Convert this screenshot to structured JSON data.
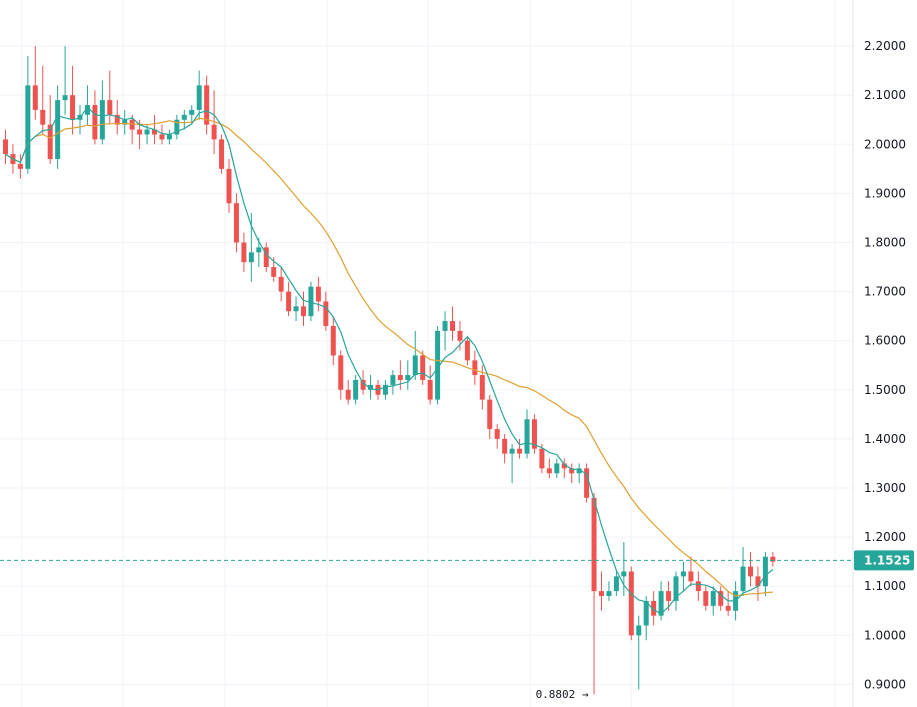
{
  "chart_data": {
    "type": "candlestick",
    "ylim": [
      0.88,
      2.3
    ],
    "y_ticks": [
      "2.2000",
      "2.1000",
      "2.0000",
      "1.9000",
      "1.8000",
      "1.7000",
      "1.6000",
      "1.5000",
      "1.4000",
      "1.3000",
      "1.2000",
      "1.1000",
      "1.0000",
      "0.9000"
    ],
    "grid": true,
    "current_price": "1.1525",
    "low_label": "0.8802",
    "colors": {
      "up": "#26a69a",
      "down": "#ef5350",
      "ma_fast": "#26a69a",
      "ma_slow": "#e0a030",
      "grid": "#f0f3fa",
      "price_line": "#26a69a"
    },
    "candles": [
      [
        2.01,
        2.03,
        1.96,
        1.98
      ],
      [
        1.98,
        2.0,
        1.94,
        1.96
      ],
      [
        1.96,
        1.98,
        1.93,
        1.95
      ],
      [
        1.95,
        2.18,
        1.94,
        2.12
      ],
      [
        2.12,
        2.2,
        2.05,
        2.07
      ],
      [
        2.07,
        2.16,
        2.02,
        2.04
      ],
      [
        2.04,
        2.1,
        1.96,
        1.97
      ],
      [
        1.97,
        2.12,
        1.95,
        2.09
      ],
      [
        2.09,
        2.2,
        2.06,
        2.1
      ],
      [
        2.1,
        2.16,
        2.02,
        2.05
      ],
      [
        2.05,
        2.08,
        2.02,
        2.06
      ],
      [
        2.06,
        2.12,
        2.04,
        2.08
      ],
      [
        2.08,
        2.11,
        2.0,
        2.01
      ],
      [
        2.01,
        2.13,
        2.0,
        2.09
      ],
      [
        2.09,
        2.15,
        2.04,
        2.06
      ],
      [
        2.06,
        2.09,
        2.02,
        2.04
      ],
      [
        2.04,
        2.07,
        2.02,
        2.05
      ],
      [
        2.05,
        2.06,
        2.0,
        2.03
      ],
      [
        2.03,
        2.05,
        1.99,
        2.02
      ],
      [
        2.02,
        2.04,
        2.0,
        2.03
      ],
      [
        2.03,
        2.06,
        2.0,
        2.02
      ],
      [
        2.02,
        2.04,
        2.0,
        2.01
      ],
      [
        2.01,
        2.03,
        2.0,
        2.02
      ],
      [
        2.02,
        2.06,
        2.01,
        2.05
      ],
      [
        2.05,
        2.07,
        2.03,
        2.06
      ],
      [
        2.06,
        2.08,
        2.04,
        2.07
      ],
      [
        2.07,
        2.15,
        2.05,
        2.12
      ],
      [
        2.12,
        2.14,
        2.02,
        2.04
      ],
      [
        2.04,
        2.11,
        1.98,
        2.01
      ],
      [
        2.01,
        2.02,
        1.94,
        1.95
      ],
      [
        1.95,
        1.97,
        1.86,
        1.88
      ],
      [
        1.88,
        1.9,
        1.78,
        1.8
      ],
      [
        1.8,
        1.82,
        1.74,
        1.76
      ],
      [
        1.76,
        1.86,
        1.72,
        1.78
      ],
      [
        1.78,
        1.81,
        1.75,
        1.79
      ],
      [
        1.79,
        1.8,
        1.74,
        1.75
      ],
      [
        1.75,
        1.77,
        1.72,
        1.73
      ],
      [
        1.73,
        1.75,
        1.68,
        1.7
      ],
      [
        1.7,
        1.72,
        1.65,
        1.66
      ],
      [
        1.66,
        1.69,
        1.64,
        1.67
      ],
      [
        1.67,
        1.7,
        1.63,
        1.65
      ],
      [
        1.65,
        1.72,
        1.64,
        1.71
      ],
      [
        1.71,
        1.73,
        1.66,
        1.68
      ],
      [
        1.68,
        1.7,
        1.62,
        1.63
      ],
      [
        1.63,
        1.65,
        1.55,
        1.57
      ],
      [
        1.57,
        1.58,
        1.48,
        1.5
      ],
      [
        1.5,
        1.52,
        1.47,
        1.48
      ],
      [
        1.48,
        1.53,
        1.47,
        1.52
      ],
      [
        1.52,
        1.54,
        1.49,
        1.5
      ],
      [
        1.5,
        1.53,
        1.48,
        1.51
      ],
      [
        1.51,
        1.52,
        1.48,
        1.49
      ],
      [
        1.49,
        1.52,
        1.48,
        1.51
      ],
      [
        1.51,
        1.54,
        1.49,
        1.53
      ],
      [
        1.53,
        1.56,
        1.5,
        1.52
      ],
      [
        1.52,
        1.56,
        1.5,
        1.53
      ],
      [
        1.53,
        1.62,
        1.52,
        1.57
      ],
      [
        1.57,
        1.58,
        1.51,
        1.52
      ],
      [
        1.52,
        1.55,
        1.47,
        1.48
      ],
      [
        1.48,
        1.63,
        1.47,
        1.62
      ],
      [
        1.62,
        1.66,
        1.58,
        1.64
      ],
      [
        1.64,
        1.67,
        1.6,
        1.62
      ],
      [
        1.62,
        1.64,
        1.58,
        1.6
      ],
      [
        1.6,
        1.61,
        1.55,
        1.56
      ],
      [
        1.56,
        1.58,
        1.51,
        1.53
      ],
      [
        1.53,
        1.55,
        1.46,
        1.48
      ],
      [
        1.48,
        1.49,
        1.4,
        1.42
      ],
      [
        1.42,
        1.43,
        1.38,
        1.4
      ],
      [
        1.4,
        1.41,
        1.35,
        1.37
      ],
      [
        1.37,
        1.39,
        1.31,
        1.38
      ],
      [
        1.38,
        1.4,
        1.36,
        1.37
      ],
      [
        1.37,
        1.46,
        1.36,
        1.44
      ],
      [
        1.44,
        1.45,
        1.37,
        1.38
      ],
      [
        1.38,
        1.39,
        1.33,
        1.34
      ],
      [
        1.34,
        1.36,
        1.32,
        1.33
      ],
      [
        1.33,
        1.36,
        1.32,
        1.35
      ],
      [
        1.35,
        1.36,
        1.32,
        1.34
      ],
      [
        1.34,
        1.35,
        1.31,
        1.33
      ],
      [
        1.33,
        1.35,
        1.31,
        1.34
      ],
      [
        1.34,
        1.35,
        1.27,
        1.28
      ],
      [
        1.28,
        1.29,
        0.88,
        1.09
      ],
      [
        1.09,
        1.13,
        1.05,
        1.08
      ],
      [
        1.08,
        1.11,
        1.07,
        1.09
      ],
      [
        1.09,
        1.13,
        1.08,
        1.12
      ],
      [
        1.12,
        1.19,
        1.08,
        1.13
      ],
      [
        1.13,
        1.14,
        0.99,
        1.0
      ],
      [
        1.0,
        1.04,
        0.89,
        1.02
      ],
      [
        1.02,
        1.08,
        0.99,
        1.07
      ],
      [
        1.07,
        1.09,
        1.02,
        1.04
      ],
      [
        1.04,
        1.11,
        1.03,
        1.09
      ],
      [
        1.09,
        1.11,
        1.05,
        1.07
      ],
      [
        1.07,
        1.13,
        1.05,
        1.12
      ],
      [
        1.12,
        1.15,
        1.09,
        1.13
      ],
      [
        1.13,
        1.16,
        1.1,
        1.11
      ],
      [
        1.11,
        1.13,
        1.07,
        1.09
      ],
      [
        1.09,
        1.1,
        1.05,
        1.06
      ],
      [
        1.06,
        1.1,
        1.04,
        1.09
      ],
      [
        1.09,
        1.1,
        1.05,
        1.06
      ],
      [
        1.06,
        1.09,
        1.04,
        1.05
      ],
      [
        1.05,
        1.11,
        1.03,
        1.09
      ],
      [
        1.09,
        1.18,
        1.08,
        1.14
      ],
      [
        1.14,
        1.17,
        1.1,
        1.12
      ],
      [
        1.12,
        1.14,
        1.07,
        1.1
      ],
      [
        1.1,
        1.17,
        1.08,
        1.16
      ],
      [
        1.16,
        1.17,
        1.14,
        1.15
      ]
    ]
  }
}
